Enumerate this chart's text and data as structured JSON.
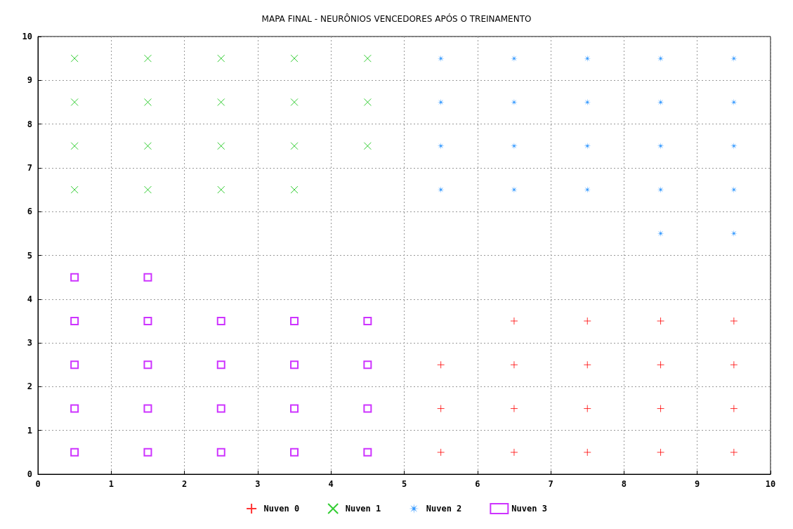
{
  "chart_data": {
    "type": "scatter",
    "title": "MAPA FINAL - NEURÔNIOS VENCEDORES APÓS O TREINAMENTO",
    "xlim": [
      0,
      10
    ],
    "xticks": [
      0,
      1,
      2,
      3,
      4,
      5,
      6,
      7,
      8,
      9,
      10
    ],
    "ylim": [
      0,
      10
    ],
    "yticks": [
      0,
      1,
      2,
      3,
      4,
      5,
      6,
      7,
      8,
      9,
      10
    ],
    "grid": true,
    "legend": "bottom",
    "series": [
      {
        "name": "Nuven 0",
        "color": "#ff0000",
        "marker": "cross",
        "x": [
          5.5,
          6.5,
          7.5,
          8.5,
          9.5,
          5.5,
          6.5,
          7.5,
          8.5,
          9.5,
          5.5,
          6.5,
          7.5,
          8.5,
          9.5,
          6.5,
          7.5,
          8.5,
          9.5
        ],
        "values": [
          0.5,
          0.5,
          0.5,
          0.5,
          0.5,
          1.5,
          1.5,
          1.5,
          1.5,
          1.5,
          2.5,
          2.5,
          2.5,
          2.5,
          2.5,
          3.5,
          3.5,
          3.5,
          3.5
        ]
      },
      {
        "name": "Nuven 1",
        "color": "#00c000",
        "marker": "cross",
        "x": [
          0.5,
          1.5,
          2.5,
          3.5,
          4.5,
          0.5,
          1.5,
          2.5,
          3.5,
          4.5,
          0.5,
          1.5,
          2.5,
          3.5,
          4.5,
          0.5,
          1.5,
          2.5,
          3.5
        ],
        "values": [
          9.5,
          9.5,
          9.5,
          9.5,
          9.5,
          8.5,
          8.5,
          8.5,
          8.5,
          8.5,
          7.5,
          7.5,
          7.5,
          7.5,
          7.5,
          6.5,
          6.5,
          6.5,
          6.5
        ]
      },
      {
        "name": "Nuven 2",
        "color": "#0080ff",
        "marker": "star",
        "x": [
          5.5,
          6.5,
          7.5,
          8.5,
          9.5,
          5.5,
          6.5,
          7.5,
          8.5,
          9.5,
          5.5,
          6.5,
          7.5,
          8.5,
          9.5,
          5.5,
          6.5,
          7.5,
          8.5,
          9.5,
          8.5,
          9.5
        ],
        "values": [
          9.5,
          9.5,
          9.5,
          9.5,
          9.5,
          8.5,
          8.5,
          8.5,
          8.5,
          8.5,
          7.5,
          7.5,
          7.5,
          7.5,
          7.5,
          6.5,
          6.5,
          6.5,
          6.5,
          6.5,
          5.5,
          5.5
        ]
      },
      {
        "name": "Nuven 3",
        "color": "#c000ff",
        "marker": "square",
        "x": [
          0.5,
          1.5,
          2.5,
          3.5,
          4.5,
          0.5,
          1.5,
          2.5,
          3.5,
          4.5,
          0.5,
          1.5,
          2.5,
          3.5,
          4.5,
          0.5,
          1.5,
          2.5,
          3.5,
          4.5,
          0.5,
          1.5
        ],
        "values": [
          0.5,
          0.5,
          0.5,
          0.5,
          0.5,
          1.5,
          1.5,
          1.5,
          1.5,
          1.5,
          2.5,
          2.5,
          2.5,
          2.5,
          2.5,
          3.5,
          3.5,
          3.5,
          3.5,
          3.5,
          4.5,
          4.5
        ]
      }
    ]
  }
}
